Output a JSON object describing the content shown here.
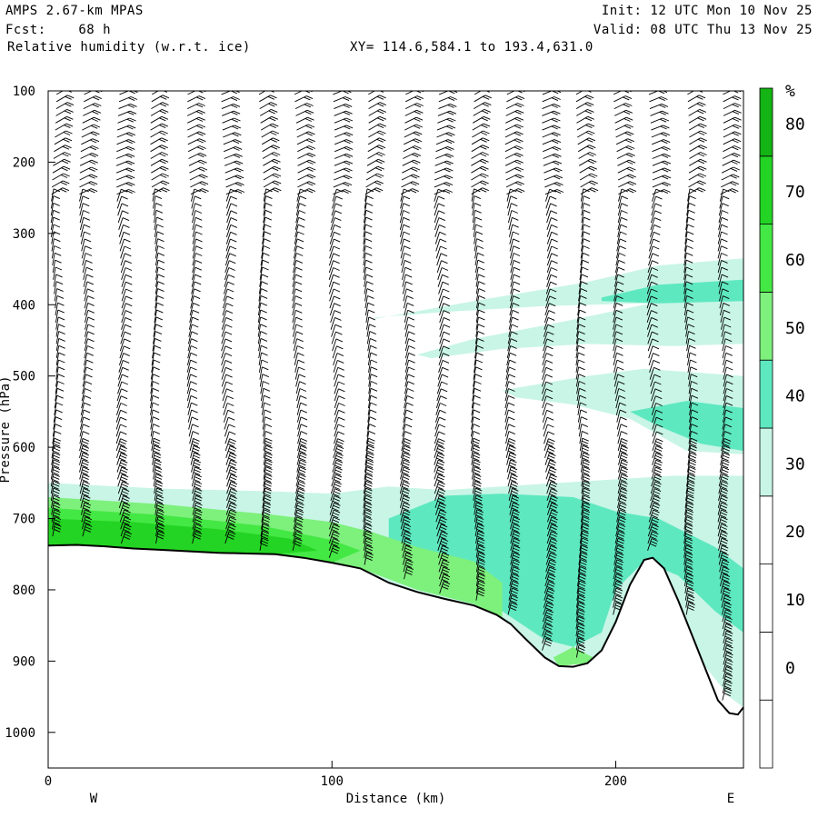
{
  "header": {
    "model": "AMPS 2.67-km MPAS",
    "fcst_label": "Fcst:",
    "fcst_value": "68 h",
    "field": "Relative humidity (w.r.t. ice)",
    "init": "Init: 12 UTC Mon 10 Nov 25",
    "valid": "Valid: 08 UTC Thu 13 Nov 25",
    "xy": "XY= 114.6,584.1 to 193.4,631.0"
  },
  "chart_data": {
    "type": "heatmap",
    "title": "Relative humidity (w.r.t. ice)",
    "xlabel": "Distance (km)",
    "ylabel": "Pressure (hPa)",
    "xlim": [
      0,
      245
    ],
    "ylim": [
      100,
      1050
    ],
    "x_ticks": [
      0,
      100,
      200
    ],
    "y_ticks": [
      100,
      200,
      300,
      400,
      500,
      600,
      700,
      800,
      900,
      1000
    ],
    "x_end_labels": {
      "left": "W",
      "right": "E"
    },
    "colorbar": {
      "unit": "%",
      "levels": [
        0,
        10,
        20,
        30,
        40,
        50,
        60,
        70,
        80
      ],
      "colors": [
        "#ffffff",
        "#ffffff",
        "#ffffff",
        "#ffffff",
        "#c8f5e6",
        "#5ee8c0",
        "#7ef07c",
        "#44e844",
        "#24d424",
        "#14b414"
      ]
    },
    "terrain": [
      [
        0,
        738
      ],
      [
        10,
        737
      ],
      [
        20,
        739
      ],
      [
        30,
        742
      ],
      [
        40,
        744
      ],
      [
        50,
        746
      ],
      [
        60,
        748
      ],
      [
        70,
        749
      ],
      [
        80,
        750
      ],
      [
        90,
        755
      ],
      [
        100,
        762
      ],
      [
        110,
        770
      ],
      [
        120,
        790
      ],
      [
        130,
        803
      ],
      [
        140,
        813
      ],
      [
        150,
        822
      ],
      [
        158,
        835
      ],
      [
        163,
        848
      ],
      [
        168,
        868
      ],
      [
        175,
        895
      ],
      [
        180,
        907
      ],
      [
        185,
        908
      ],
      [
        190,
        903
      ],
      [
        195,
        885
      ],
      [
        200,
        845
      ],
      [
        205,
        793
      ],
      [
        210,
        758
      ],
      [
        213,
        755
      ],
      [
        217,
        770
      ],
      [
        222,
        815
      ],
      [
        227,
        865
      ],
      [
        232,
        915
      ],
      [
        236,
        955
      ],
      [
        240,
        973
      ],
      [
        243,
        975
      ],
      [
        245,
        965
      ]
    ],
    "wind_columns_km": [
      2,
      12,
      25,
      37,
      50,
      62,
      75,
      87,
      100,
      112,
      125,
      137,
      150,
      162,
      175,
      187,
      200,
      212,
      225,
      237
    ]
  }
}
